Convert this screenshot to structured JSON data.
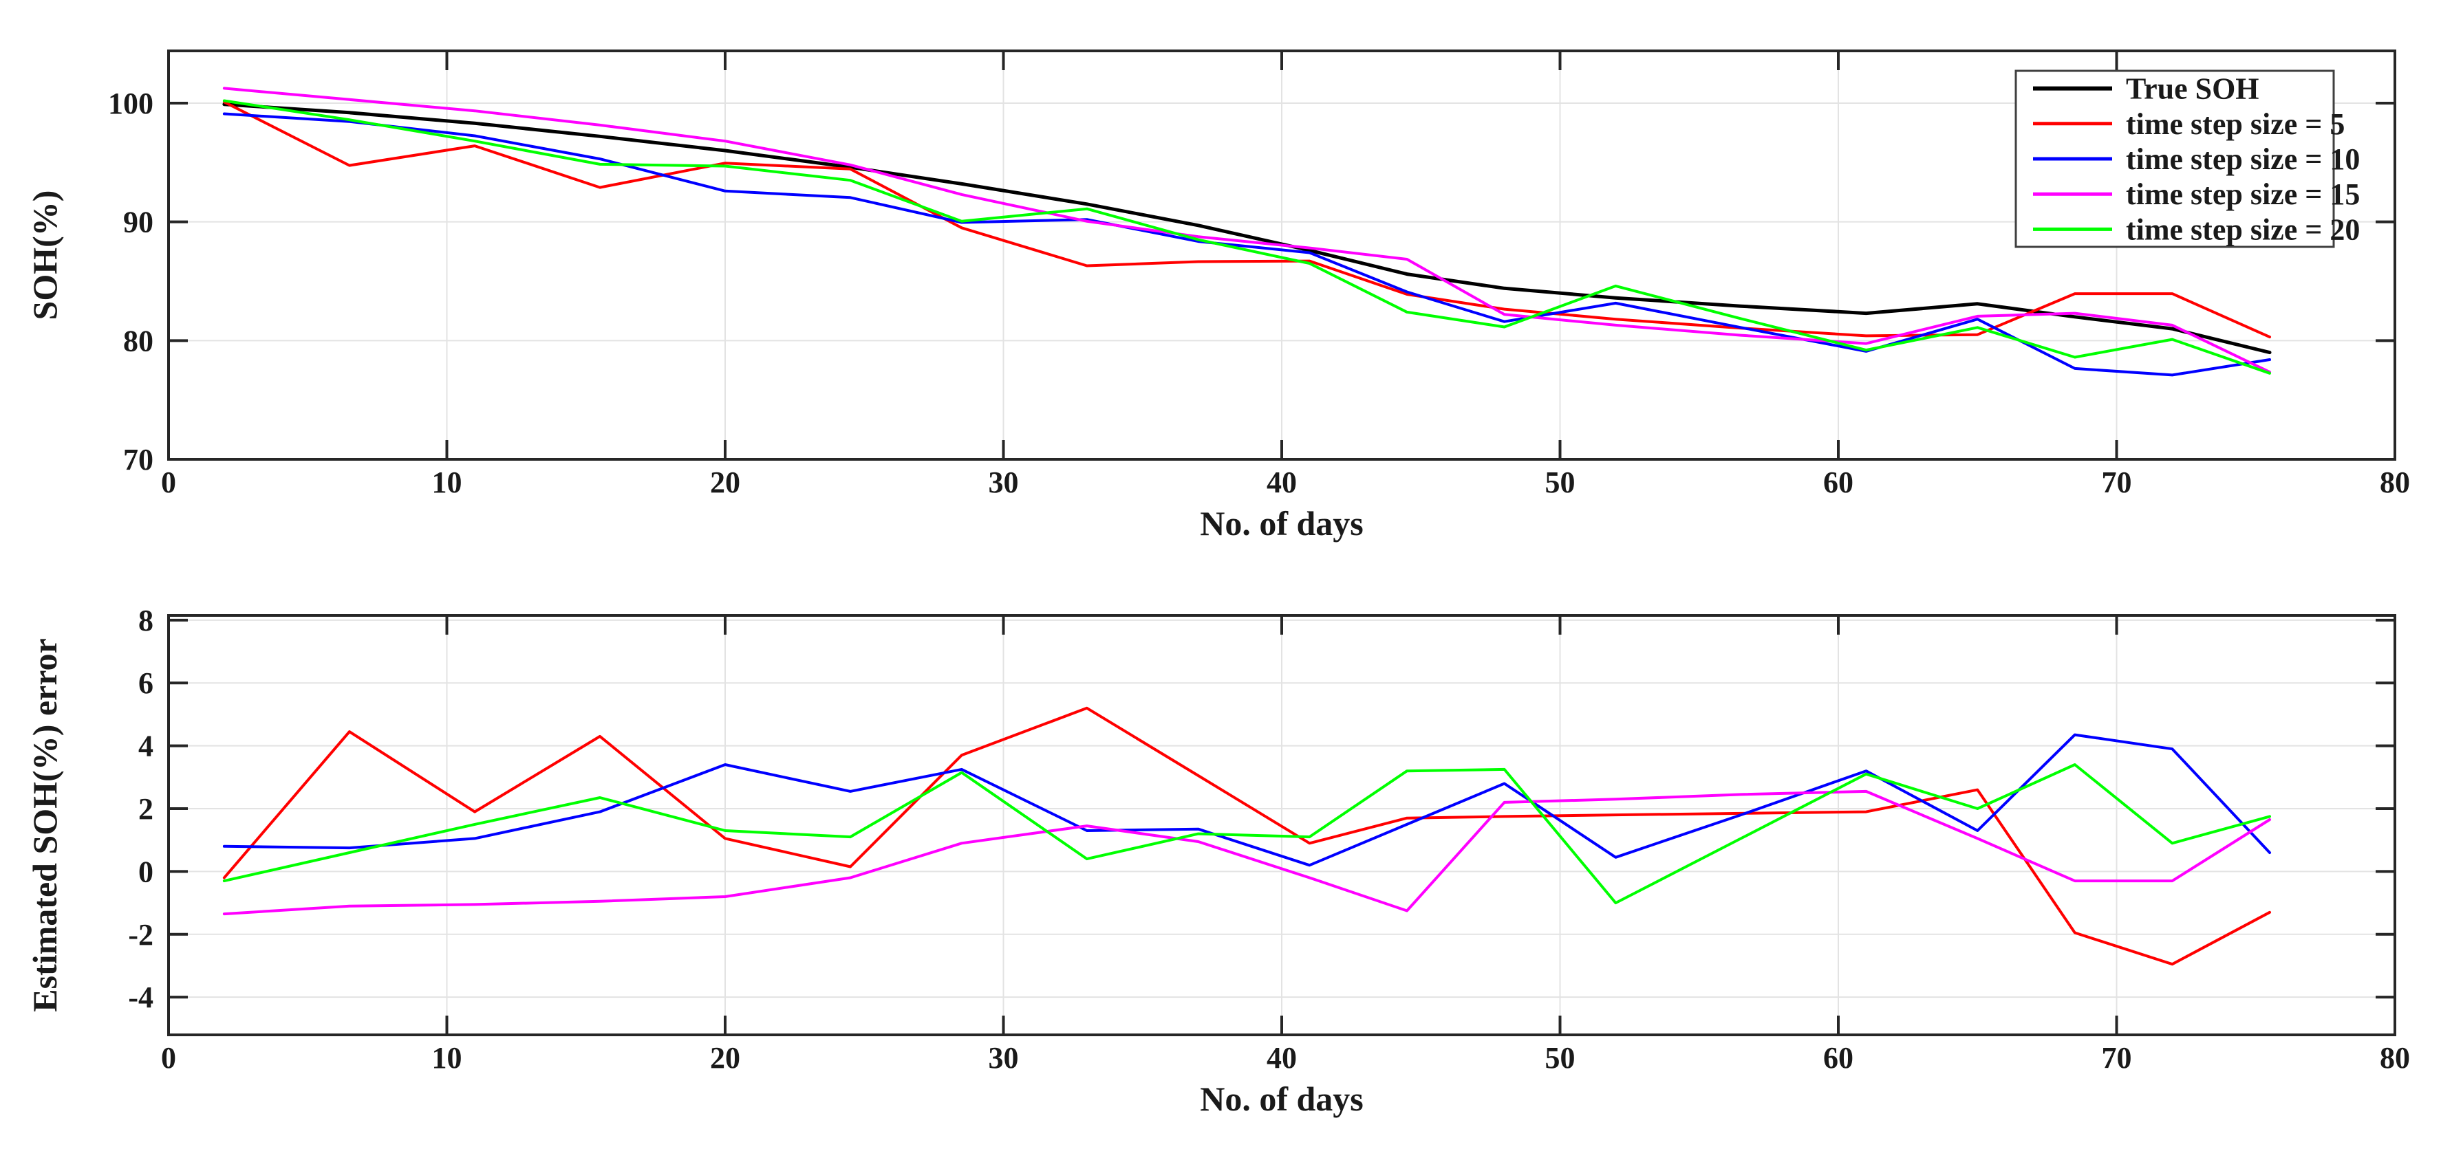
{
  "figure": {
    "background": "#ffffff",
    "grid_color": "#e3e3e3",
    "axis_color": "#262626",
    "tick_color": "#262626"
  },
  "chart_data": [
    {
      "type": "line",
      "title": "",
      "xlabel": "No. of days",
      "ylabel": "SOH(%)",
      "xlim": [
        0,
        80
      ],
      "ylim": [
        70,
        104.4
      ],
      "xticks": [
        0,
        10,
        20,
        30,
        40,
        50,
        60,
        70,
        80
      ],
      "yticks": [
        70,
        80,
        90,
        100
      ],
      "grid": true,
      "legend_position": "top-right",
      "x": [
        2,
        6.5,
        11,
        15.5,
        20,
        24.5,
        28.5,
        33,
        37,
        41,
        44.5,
        48,
        52,
        56.5,
        61,
        65,
        68.5,
        72,
        75.5
      ],
      "series": [
        {
          "name": "True SOH",
          "color": "#000000",
          "width": 5,
          "values": [
            99.9,
            99.2,
            98.3,
            97.2,
            96.0,
            94.6,
            93.2,
            91.5,
            89.7,
            87.6,
            85.6,
            84.4,
            83.6,
            82.9,
            82.3,
            83.1,
            82.0,
            81.0,
            79.0
          ]
        },
        {
          "name": "time step size = 5",
          "color": "#ff0000",
          "width": 4,
          "values": [
            100.1,
            94.75,
            96.4,
            92.9,
            94.95,
            94.45,
            89.5,
            86.3,
            86.65,
            86.7,
            83.9,
            82.65,
            81.8,
            81.05,
            80.4,
            80.5,
            83.95,
            83.95,
            80.3
          ]
        },
        {
          "name": "time step size = 10",
          "color": "#0000ff",
          "width": 4,
          "values": [
            99.1,
            98.45,
            97.25,
            95.3,
            92.6,
            92.05,
            89.95,
            90.2,
            88.35,
            87.4,
            84.1,
            81.6,
            83.15,
            81.1,
            79.1,
            81.8,
            77.65,
            77.1,
            78.4
          ]
        },
        {
          "name": "time step size = 15",
          "color": "#ff00ff",
          "width": 4,
          "values": [
            101.25,
            100.3,
            99.35,
            98.15,
            96.8,
            94.8,
            92.3,
            90.05,
            88.75,
            87.8,
            86.85,
            82.2,
            81.3,
            80.45,
            79.75,
            82.05,
            82.3,
            81.3,
            77.35
          ]
        },
        {
          "name": "time step size = 20",
          "color": "#00ff00",
          "width": 4,
          "values": [
            100.2,
            98.6,
            96.8,
            94.85,
            94.7,
            93.5,
            90.05,
            91.1,
            88.5,
            86.5,
            82.4,
            81.15,
            84.6,
            81.85,
            79.2,
            81.1,
            78.6,
            80.1,
            77.25
          ]
        }
      ]
    },
    {
      "type": "line",
      "title": "",
      "xlabel": "No. of days",
      "ylabel": "Estimated SOH(%) error",
      "xlim": [
        0,
        80
      ],
      "ylim": [
        -5.2,
        8.15
      ],
      "xticks": [
        0,
        10,
        20,
        30,
        40,
        50,
        60,
        70,
        80
      ],
      "yticks": [
        -4,
        -2,
        0,
        2,
        4,
        6,
        8
      ],
      "grid": true,
      "legend_position": "none",
      "x": [
        2,
        6.5,
        11,
        15.5,
        20,
        24.5,
        28.5,
        33,
        37,
        41,
        44.5,
        48,
        52,
        56.5,
        61,
        65,
        68.5,
        72,
        75.5
      ],
      "series": [
        {
          "name": "time step size = 5",
          "color": "#ff0000",
          "width": 4,
          "values": [
            -0.2,
            4.45,
            1.9,
            4.3,
            1.05,
            0.15,
            3.7,
            5.2,
            3.05,
            0.9,
            1.7,
            1.75,
            1.8,
            1.85,
            1.9,
            2.6,
            -1.95,
            -2.95,
            -1.3
          ]
        },
        {
          "name": "time step size = 10",
          "color": "#0000ff",
          "width": 4,
          "values": [
            0.8,
            0.75,
            1.05,
            1.9,
            3.4,
            2.55,
            3.25,
            1.3,
            1.35,
            0.2,
            1.5,
            2.8,
            0.45,
            1.8,
            3.2,
            1.3,
            4.35,
            3.9,
            0.6
          ]
        },
        {
          "name": "time step size = 15",
          "color": "#ff00ff",
          "width": 4,
          "values": [
            -1.35,
            -1.1,
            -1.05,
            -0.95,
            -0.8,
            -0.2,
            0.9,
            1.45,
            0.95,
            -0.2,
            -1.25,
            2.2,
            2.3,
            2.45,
            2.55,
            1.05,
            -0.3,
            -0.3,
            1.65
          ]
        },
        {
          "name": "time step size = 20",
          "color": "#00ff00",
          "width": 4,
          "values": [
            -0.3,
            0.6,
            1.5,
            2.35,
            1.3,
            1.1,
            3.15,
            0.4,
            1.2,
            1.1,
            3.2,
            3.25,
            -1.0,
            1.05,
            3.1,
            2.0,
            3.4,
            0.9,
            1.75
          ]
        }
      ]
    }
  ]
}
